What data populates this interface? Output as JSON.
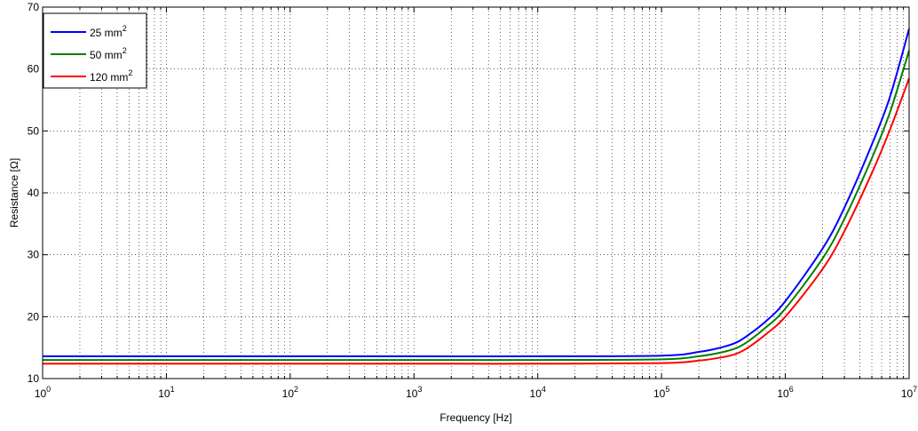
{
  "chart_data": {
    "type": "line",
    "xlabel": "Frequency [Hz]",
    "ylabel": "Resistance [Ω]",
    "x_scale": "log",
    "xlim": [
      1,
      10000000
    ],
    "ylim": [
      10,
      70
    ],
    "grid": true,
    "legend_position": "top-left",
    "x_ticks": [
      {
        "base": "10",
        "exp": "0",
        "value": 1
      },
      {
        "base": "10",
        "exp": "1",
        "value": 10
      },
      {
        "base": "10",
        "exp": "2",
        "value": 100
      },
      {
        "base": "10",
        "exp": "3",
        "value": 1000
      },
      {
        "base": "10",
        "exp": "4",
        "value": 10000
      },
      {
        "base": "10",
        "exp": "5",
        "value": 100000
      },
      {
        "base": "10",
        "exp": "6",
        "value": 1000000
      },
      {
        "base": "10",
        "exp": "7",
        "value": 10000000
      }
    ],
    "y_ticks": [
      "10",
      "20",
      "30",
      "40",
      "50",
      "60",
      "70"
    ],
    "series": [
      {
        "name": "25 mm",
        "name_sup": "2",
        "color": "#0000ff",
        "x": [
          1,
          10,
          100,
          1000,
          10000,
          100000,
          200000,
          300000,
          400000,
          500000,
          700000,
          1000000,
          2000000,
          3000000,
          5000000,
          7000000,
          10000000
        ],
        "y": [
          13.6,
          13.6,
          13.6,
          13.6,
          13.6,
          13.7,
          14.3,
          15.0,
          15.8,
          17.0,
          19.3,
          22.5,
          31.0,
          37.6,
          47.8,
          55.5,
          66.5
        ]
      },
      {
        "name": "50 mm",
        "name_sup": "2",
        "color": "#008000",
        "x": [
          1,
          10,
          100,
          1000,
          10000,
          100000,
          200000,
          300000,
          400000,
          500000,
          700000,
          1000000,
          2000000,
          3000000,
          5000000,
          7000000,
          10000000
        ],
        "y": [
          13.0,
          13.0,
          13.0,
          13.0,
          13.0,
          13.1,
          13.6,
          14.2,
          14.9,
          16.0,
          18.3,
          21.3,
          29.4,
          35.8,
          45.6,
          53.0,
          63.0
        ]
      },
      {
        "name": "120 mm",
        "name_sup": "2",
        "color": "#ff0000",
        "x": [
          1,
          10,
          100,
          1000,
          10000,
          100000,
          200000,
          300000,
          400000,
          500000,
          700000,
          1000000,
          2000000,
          3000000,
          5000000,
          7000000,
          10000000
        ],
        "y": [
          12.4,
          12.4,
          12.4,
          12.4,
          12.4,
          12.5,
          12.9,
          13.4,
          14.0,
          15.0,
          17.2,
          20.0,
          27.7,
          33.8,
          43.2,
          50.2,
          58.5
        ]
      }
    ]
  }
}
